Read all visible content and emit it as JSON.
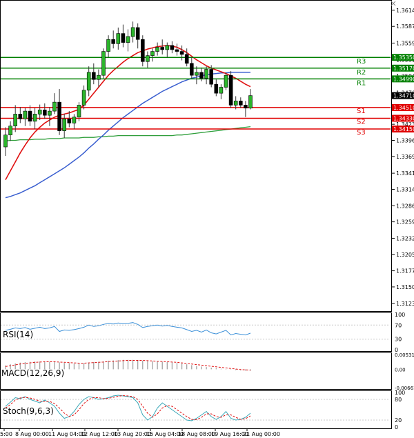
{
  "chart_data": {
    "type": "candlestick",
    "price_axis": {
      "ylim": [
        1.311,
        1.363
      ],
      "ticks": [
        "1.36140",
        "1.35870",
        "1.35590",
        "1.35310",
        "1.35040",
        "1.34760",
        "1.34500",
        "1.34230",
        "1.33960",
        "1.33690",
        "1.33410",
        "1.33140",
        "1.32865",
        "1.32595",
        "1.32320",
        "1.32050",
        "1.31775",
        "1.31505",
        "1.31230"
      ]
    },
    "time_axis": {
      "labels": [
        "5:00",
        "8 Aug 00:00",
        "11 Aug 04:00",
        "12 Aug 12:00",
        "13 Aug 20:00",
        "15 Aug 04:00",
        "18 Aug 08:00",
        "19 Aug 16:00",
        "21 Aug 00:00"
      ]
    },
    "current_price": "1.34710",
    "levels": [
      {
        "label": "R3",
        "value": "1.35350",
        "price": 1.3535,
        "color": "#008000"
      },
      {
        "label": "R2",
        "value": "1.35170",
        "price": 1.3517,
        "color": "#008000"
      },
      {
        "label": "R1",
        "value": "1.34990",
        "price": 1.3499,
        "color": "#008000"
      },
      {
        "label": "S1",
        "value": "1.34510",
        "price": 1.3451,
        "color": "#e00000"
      },
      {
        "label": "S2",
        "value": "1.34330",
        "price": 1.3433,
        "color": "#e00000"
      },
      {
        "label": "S3",
        "value": "1.34150",
        "price": 1.3415,
        "color": "#e00000"
      }
    ],
    "candles": [
      [
        1.3385,
        1.3418,
        1.337,
        1.3405
      ],
      [
        1.3405,
        1.3428,
        1.3395,
        1.342
      ],
      [
        1.342,
        1.3455,
        1.341,
        1.344
      ],
      [
        1.344,
        1.3452,
        1.3425,
        1.3432
      ],
      [
        1.3432,
        1.345,
        1.342,
        1.3445
      ],
      [
        1.3445,
        1.3455,
        1.342,
        1.3428
      ],
      [
        1.3428,
        1.345,
        1.3415,
        1.344
      ],
      [
        1.344,
        1.3456,
        1.343,
        1.3447
      ],
      [
        1.3447,
        1.3458,
        1.3432,
        1.3438
      ],
      [
        1.3438,
        1.3452,
        1.342,
        1.3445
      ],
      [
        1.3445,
        1.3475,
        1.344,
        1.346
      ],
      [
        1.346,
        1.3482,
        1.3405,
        1.3412
      ],
      [
        1.3412,
        1.344,
        1.34,
        1.3432
      ],
      [
        1.3432,
        1.3445,
        1.3418,
        1.3425
      ],
      [
        1.3425,
        1.344,
        1.3415,
        1.3435
      ],
      [
        1.3435,
        1.346,
        1.3428,
        1.3455
      ],
      [
        1.3455,
        1.3488,
        1.3448,
        1.348
      ],
      [
        1.348,
        1.352,
        1.347,
        1.351
      ],
      [
        1.351,
        1.3525,
        1.349,
        1.3498
      ],
      [
        1.3498,
        1.3515,
        1.3485,
        1.3505
      ],
      [
        1.3505,
        1.355,
        1.35,
        1.3545
      ],
      [
        1.3545,
        1.3572,
        1.3535,
        1.3565
      ],
      [
        1.3565,
        1.358,
        1.355,
        1.3558
      ],
      [
        1.3558,
        1.3585,
        1.3548,
        1.3575
      ],
      [
        1.3575,
        1.359,
        1.3552,
        1.356
      ],
      [
        1.356,
        1.3582,
        1.3545,
        1.357
      ],
      [
        1.357,
        1.3595,
        1.356,
        1.3585
      ],
      [
        1.3585,
        1.3592,
        1.355,
        1.3565
      ],
      [
        1.3565,
        1.3572,
        1.352,
        1.3528
      ],
      [
        1.3528,
        1.3545,
        1.3518,
        1.3538
      ],
      [
        1.3538,
        1.355,
        1.3528,
        1.3545
      ],
      [
        1.3545,
        1.356,
        1.3538,
        1.3552
      ],
      [
        1.3552,
        1.3565,
        1.354,
        1.3548
      ],
      [
        1.3548,
        1.356,
        1.3535,
        1.3555
      ],
      [
        1.3555,
        1.3562,
        1.3542,
        1.3548
      ],
      [
        1.3548,
        1.3558,
        1.3538,
        1.3545
      ],
      [
        1.3545,
        1.3555,
        1.353,
        1.354
      ],
      [
        1.354,
        1.355,
        1.352,
        1.3525
      ],
      [
        1.3525,
        1.3535,
        1.35,
        1.3505
      ],
      [
        1.3505,
        1.352,
        1.349,
        1.351
      ],
      [
        1.351,
        1.3518,
        1.3495,
        1.35
      ],
      [
        1.35,
        1.352,
        1.349,
        1.3515
      ],
      [
        1.3515,
        1.3522,
        1.3485,
        1.349
      ],
      [
        1.349,
        1.3498,
        1.347,
        1.3475
      ],
      [
        1.3475,
        1.349,
        1.3465,
        1.3485
      ],
      [
        1.3485,
        1.351,
        1.348,
        1.3505
      ],
      [
        1.3505,
        1.3512,
        1.345,
        1.3455
      ],
      [
        1.3455,
        1.347,
        1.3448,
        1.3462
      ],
      [
        1.3462,
        1.3468,
        1.345,
        1.3455
      ],
      [
        1.3455,
        1.3462,
        1.3435,
        1.345
      ],
      [
        1.345,
        1.3482,
        1.3448,
        1.3471
      ]
    ],
    "ma_red": [
      1.333,
      1.3345,
      1.336,
      1.3375,
      1.3388,
      1.34,
      1.341,
      1.3418,
      1.3425,
      1.343,
      1.3435,
      1.3438,
      1.344,
      1.3442,
      1.3445,
      1.3448,
      1.3455,
      1.3465,
      1.3475,
      1.3485,
      1.3495,
      1.3505,
      1.3513,
      1.352,
      1.3527,
      1.3533,
      1.3538,
      1.3543,
      1.3546,
      1.3549,
      1.3551,
      1.3553,
      1.3554,
      1.3555,
      1.3554,
      1.3552,
      1.3548,
      1.3543,
      1.3537,
      1.3531,
      1.3526,
      1.3521,
      1.3517,
      1.3514,
      1.3511,
      1.3508,
      1.3504,
      1.35,
      1.3495,
      1.349,
      1.3486
    ],
    "ma_blue": [
      1.33,
      1.3302,
      1.3305,
      1.3308,
      1.3312,
      1.3316,
      1.332,
      1.3325,
      1.333,
      1.3335,
      1.334,
      1.3345,
      1.335,
      1.3356,
      1.3362,
      1.3368,
      1.3375,
      1.3383,
      1.339,
      1.3398,
      1.3405,
      1.3413,
      1.342,
      1.3427,
      1.3434,
      1.344,
      1.3446,
      1.3452,
      1.3458,
      1.3463,
      1.3468,
      1.3473,
      1.3478,
      1.3482,
      1.3486,
      1.349,
      1.3494,
      1.3497,
      1.35,
      1.3502,
      1.3504,
      1.3506,
      1.3507,
      1.3508,
      1.3509,
      1.3509,
      1.351,
      1.351,
      1.351,
      1.351,
      1.351
    ],
    "ma_green": [
      1.3395,
      1.3396,
      1.3396,
      1.3397,
      1.3397,
      1.3397,
      1.3398,
      1.3398,
      1.3398,
      1.3399,
      1.3399,
      1.3399,
      1.34,
      1.34,
      1.34,
      1.34,
      1.3401,
      1.3401,
      1.3401,
      1.3402,
      1.3402,
      1.3403,
      1.3403,
      1.3404,
      1.3404,
      1.3404,
      1.3404,
      1.3404,
      1.3404,
      1.3404,
      1.3404,
      1.3404,
      1.3404,
      1.3404,
      1.3404,
      1.3405,
      1.3405,
      1.3406,
      1.3407,
      1.3408,
      1.3409,
      1.341,
      1.3411,
      1.3412,
      1.3413,
      1.3414,
      1.3415,
      1.3416,
      1.3417,
      1.3418,
      1.3419
    ],
    "rsi": {
      "label": "RSI(14)",
      "ticks": [
        "100",
        "70",
        "30",
        "0"
      ],
      "values": [
        55,
        58,
        62,
        60,
        63,
        58,
        61,
        64,
        60,
        62,
        66,
        52,
        56,
        55,
        57,
        60,
        64,
        70,
        66,
        68,
        72,
        75,
        73,
        76,
        74,
        75,
        77,
        72,
        63,
        66,
        68,
        70,
        67,
        69,
        66,
        64,
        62,
        57,
        52,
        55,
        50,
        56,
        48,
        45,
        50,
        55,
        42,
        46,
        44,
        42,
        47
      ]
    },
    "macd": {
      "label": "MACD(12,26,9)",
      "ticks": [
        "0.005316",
        "0.00",
        "-0.006611"
      ],
      "histogram": [
        0.0014,
        0.0018,
        0.0021,
        0.0024,
        0.0026,
        0.0027,
        0.0028,
        0.0028,
        0.0028,
        0.0027,
        0.0027,
        0.0025,
        0.0023,
        0.0022,
        0.0021,
        0.0021,
        0.0022,
        0.0024,
        0.0026,
        0.0027,
        0.0029,
        0.0031,
        0.0032,
        0.0033,
        0.0034,
        0.0034,
        0.0034,
        0.0033,
        0.0031,
        0.003,
        0.0029,
        0.0028,
        0.0027,
        0.0026,
        0.0025,
        0.0023,
        0.0021,
        0.0018,
        0.0015,
        0.0012,
        0.001,
        0.0008,
        0.0006,
        0.0004,
        0.0002,
        0.0001,
        -0.0001,
        -0.0003,
        -0.0004,
        -0.0005,
        -0.0005
      ],
      "signal": [
        0.001,
        0.0013,
        0.0016,
        0.0019,
        0.0021,
        0.0023,
        0.0025,
        0.0026,
        0.0027,
        0.0027,
        0.0027,
        0.0026,
        0.0025,
        0.0024,
        0.0023,
        0.0022,
        0.0022,
        0.0023,
        0.0024,
        0.0025,
        0.0026,
        0.0028,
        0.0029,
        0.003,
        0.0031,
        0.0032,
        0.0032,
        0.0032,
        0.0032,
        0.0031,
        0.003,
        0.0029,
        0.0028,
        0.0027,
        0.0026,
        0.0025,
        0.0023,
        0.0021,
        0.0019,
        0.0017,
        0.0015,
        0.0013,
        0.0011,
        0.0009,
        0.0007,
        0.0005,
        0.0003,
        0.0001,
        -0.0001,
        -0.0002,
        -0.0003
      ]
    },
    "stoch": {
      "label": "Stoch(9,6,3)",
      "ticks": [
        "100",
        "80",
        "20",
        "0"
      ],
      "k": [
        60,
        72,
        85,
        82,
        88,
        80,
        75,
        70,
        78,
        70,
        60,
        40,
        25,
        30,
        45,
        65,
        80,
        88,
        85,
        80,
        82,
        85,
        90,
        92,
        90,
        88,
        85,
        70,
        35,
        20,
        30,
        55,
        70,
        60,
        50,
        40,
        30,
        20,
        18,
        25,
        35,
        45,
        30,
        22,
        30,
        45,
        25,
        20,
        22,
        28,
        40
      ],
      "d": [
        55,
        65,
        78,
        84,
        86,
        84,
        80,
        75,
        74,
        74,
        68,
        55,
        40,
        30,
        35,
        50,
        68,
        80,
        85,
        85,
        82,
        83,
        86,
        89,
        91,
        90,
        88,
        80,
        60,
        40,
        28,
        38,
        55,
        62,
        60,
        50,
        40,
        30,
        22,
        21,
        28,
        38,
        38,
        30,
        28,
        35,
        35,
        28,
        22,
        24,
        32
      ]
    }
  }
}
